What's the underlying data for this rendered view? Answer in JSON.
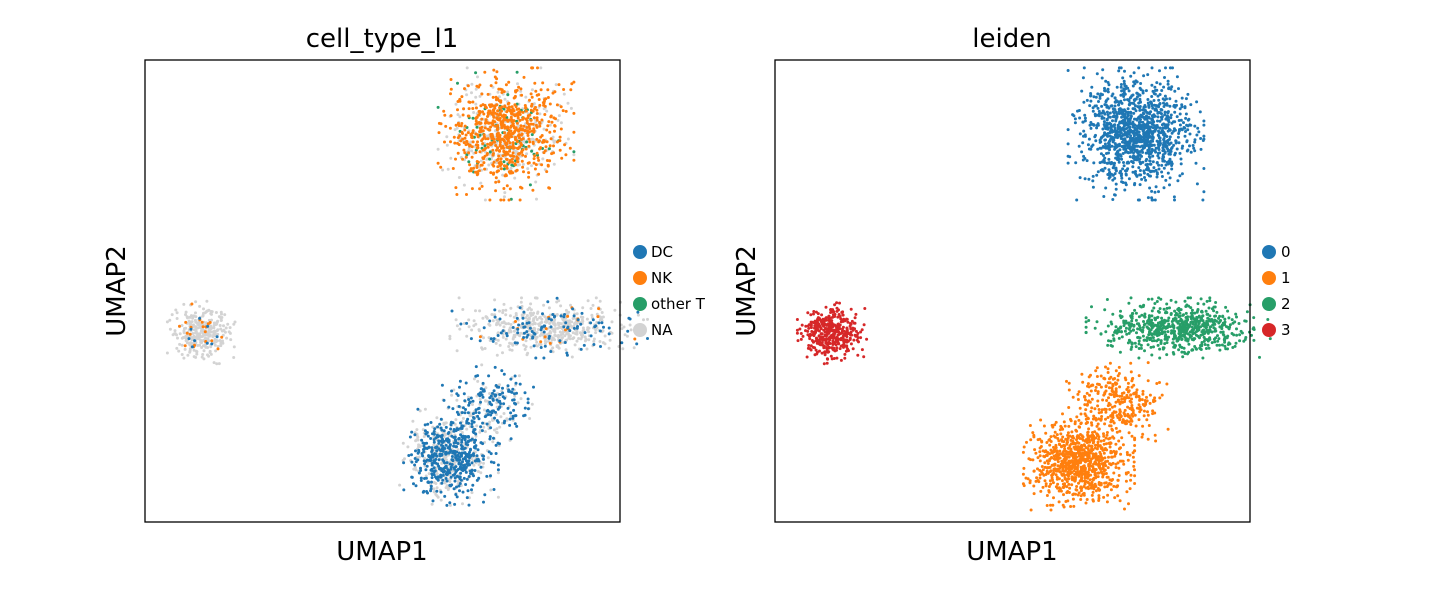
{
  "chart_data": [
    {
      "type": "scatter",
      "title": "cell_type_l1",
      "xlabel": "UMAP1",
      "ylabel": "UMAP2",
      "ticks": "none",
      "grid": false,
      "legend_position": "right",
      "legend": [
        {
          "label": "DC",
          "color": "#1f77b4"
        },
        {
          "label": "NK",
          "color": "#ff7f0e"
        },
        {
          "label": "other T",
          "color": "#279e68"
        },
        {
          "label": "NA",
          "color": "#d3d3d3"
        }
      ],
      "clusters": [
        {
          "center": [
            0.76,
            0.84
          ],
          "spread": [
            0.055,
            0.055
          ],
          "n": 1100,
          "mix": {
            "NA": 0.3,
            "NK": 0.63,
            "other T": 0.07
          }
        },
        {
          "center": [
            0.12,
            0.41
          ],
          "spread": [
            0.028,
            0.026
          ],
          "n": 330,
          "mix": {
            "NA": 0.9,
            "NK": 0.06,
            "DC": 0.04
          }
        },
        {
          "center": [
            0.85,
            0.42
          ],
          "spread": [
            0.08,
            0.025
          ],
          "n": 600,
          "mix": {
            "NA": 0.78,
            "DC": 0.18,
            "NK": 0.04
          }
        },
        {
          "center": [
            0.72,
            0.25
          ],
          "spread": [
            0.045,
            0.035
          ],
          "n": 250,
          "mix": {
            "DC": 0.6,
            "NA": 0.4
          }
        },
        {
          "center": [
            0.64,
            0.14
          ],
          "spread": [
            0.04,
            0.04
          ],
          "n": 750,
          "mix": {
            "DC": 0.55,
            "NA": 0.45
          }
        }
      ]
    },
    {
      "type": "scatter",
      "title": "leiden",
      "xlabel": "UMAP1",
      "ylabel": "UMAP2",
      "ticks": "none",
      "grid": false,
      "legend_position": "right",
      "legend": [
        {
          "label": "0",
          "color": "#1f77b4"
        },
        {
          "label": "1",
          "color": "#ff7f0e"
        },
        {
          "label": "2",
          "color": "#279e68"
        },
        {
          "label": "3",
          "color": "#d62728"
        }
      ],
      "clusters": [
        {
          "center": [
            0.76,
            0.84
          ],
          "spread": [
            0.055,
            0.055
          ],
          "n": 1200,
          "mix": {
            "0": 1.0
          }
        },
        {
          "center": [
            0.12,
            0.41
          ],
          "spread": [
            0.028,
            0.026
          ],
          "n": 400,
          "mix": {
            "3": 1.0
          }
        },
        {
          "center": [
            0.85,
            0.42
          ],
          "spread": [
            0.075,
            0.025
          ],
          "n": 700,
          "mix": {
            "2": 1.0
          }
        },
        {
          "center": [
            0.72,
            0.26
          ],
          "spread": [
            0.045,
            0.035
          ],
          "n": 300,
          "mix": {
            "1": 1.0
          }
        },
        {
          "center": [
            0.64,
            0.13
          ],
          "spread": [
            0.045,
            0.04
          ],
          "n": 900,
          "mix": {
            "1": 1.0
          }
        }
      ]
    }
  ]
}
